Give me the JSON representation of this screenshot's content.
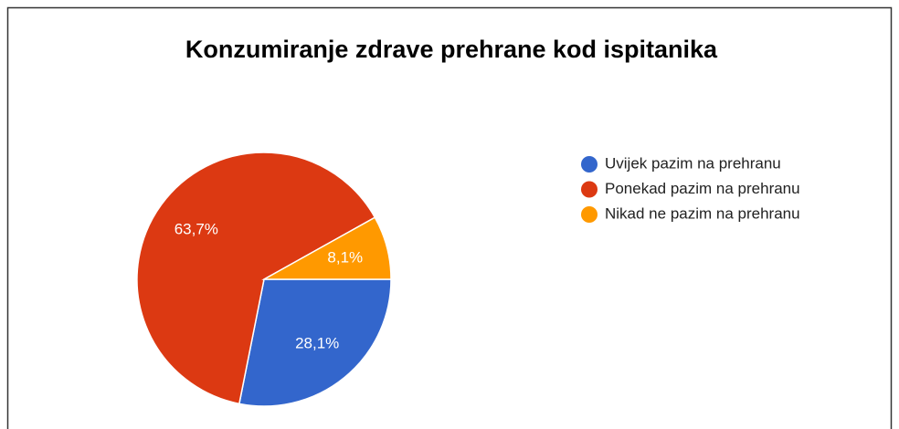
{
  "chart_data": {
    "type": "pie",
    "title": "Konzumiranje zdrave prehrane kod ispitanika",
    "categories": [
      "Uvijek pazim na prehranu",
      "Ponekad pazim na prehranu",
      "Nikad ne pazim na prehranu"
    ],
    "values": [
      28.1,
      63.7,
      8.1
    ],
    "value_labels": [
      "28,1%",
      "63,7%",
      "8,1%"
    ],
    "colors": [
      "#3366cc",
      "#dc3912",
      "#ff9900"
    ],
    "legend": "right"
  }
}
